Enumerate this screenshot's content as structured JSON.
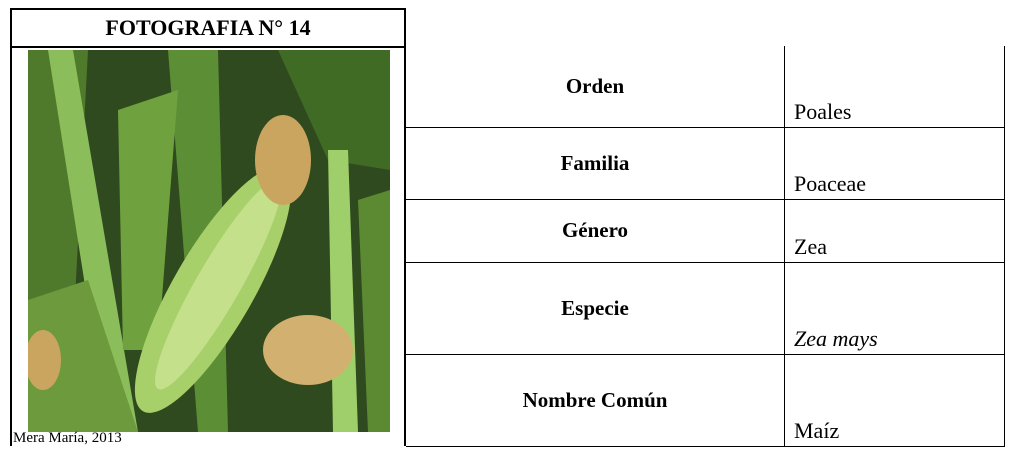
{
  "photo": {
    "title": "FOTOGRAFIA N° 14",
    "caption": "Mera María, 2013"
  },
  "table": {
    "rows": [
      [
        "Orden",
        "Poales"
      ],
      [
        "Familia",
        "Poaceae"
      ],
      [
        "Género",
        "Zea"
      ],
      [
        "Especie",
        "Zea mays"
      ],
      [
        "Nombre Común",
        "Maíz"
      ]
    ]
  }
}
